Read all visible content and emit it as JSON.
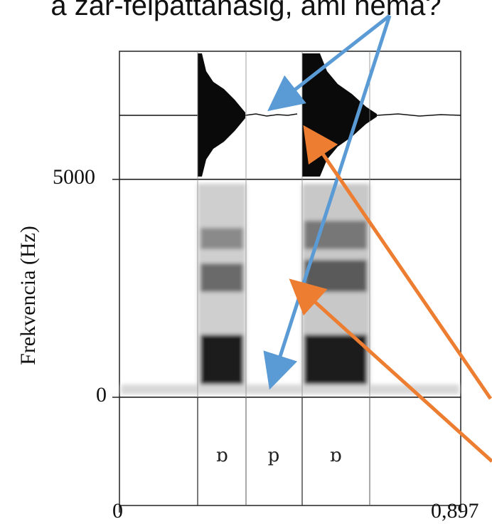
{
  "caption": "a zár-felpattanásig, ami néma?",
  "y_axis": {
    "label": "Frekvencia (Hz)",
    "tick_top": "5000",
    "tick_bottom": "0"
  },
  "x_axis": {
    "start": "0",
    "end": "0,897"
  },
  "segments": [
    "ɒ",
    "p",
    "ɒ"
  ],
  "colors": {
    "blue_arrow": "#5B9BD5",
    "orange_arrow": "#ED7D31",
    "frame": "#222222"
  }
}
